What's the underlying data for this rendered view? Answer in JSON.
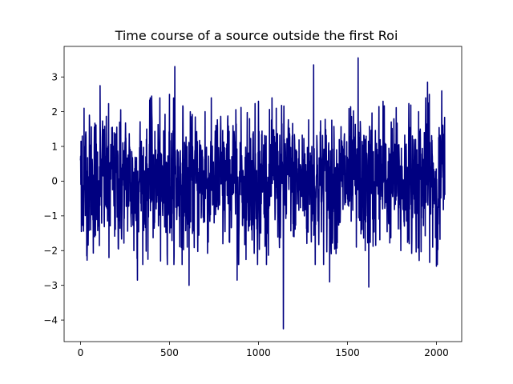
{
  "chart_data": {
    "type": "line",
    "title": "Time course of a source outside the first Roi",
    "xlabel": "",
    "ylabel": "",
    "xlim": [
      -92,
      2142
    ],
    "ylim": [
      -4.62,
      3.88
    ],
    "x_ticks": [
      0,
      500,
      1000,
      1500,
      2000
    ],
    "x_tick_labels": [
      "0",
      "500",
      "1000",
      "1500",
      "2000"
    ],
    "y_ticks": [
      -4,
      -3,
      -2,
      -1,
      0,
      1,
      2,
      3
    ],
    "y_tick_labels": [
      "−4",
      "−3",
      "−2",
      "−1",
      "0",
      "1",
      "2",
      "3"
    ],
    "grid": false,
    "legend": "none",
    "series": [
      {
        "color": "#000080",
        "n_samples": 2048,
        "description_values": "approx. zero-mean noise, typical range -2.5 to 2.5",
        "x": [
          0,
          5,
          10,
          20,
          35,
          50,
          80,
          110,
          160,
          220,
          300,
          320,
          400,
          450,
          500,
          530,
          600,
          610,
          700,
          800,
          880,
          950,
          1000,
          1050,
          1100,
          1135,
          1140,
          1145,
          1200,
          1300,
          1310,
          1400,
          1550,
          1560,
          1600,
          1620,
          1700,
          1800,
          1900,
          1950,
          1960,
          2000,
          2030,
          2047
        ],
        "y": [
          0.6,
          -1.45,
          1.3,
          2.1,
          -2.15,
          1.9,
          -1.6,
          2.75,
          -2.2,
          1.7,
          -2.0,
          -2.85,
          2.45,
          -2.3,
          2.5,
          3.3,
          -1.9,
          -3.0,
          2.0,
          -1.8,
          -2.85,
          1.8,
          2.3,
          -1.5,
          2.1,
          0.4,
          -4.25,
          1.2,
          -1.6,
          1.0,
          3.35,
          -2.9,
          -1.9,
          3.55,
          -2.0,
          -3.05,
          2.3,
          -2.0,
          2.0,
          2.85,
          2.5,
          -2.45,
          2.6,
          -0.4
        ]
      }
    ]
  }
}
